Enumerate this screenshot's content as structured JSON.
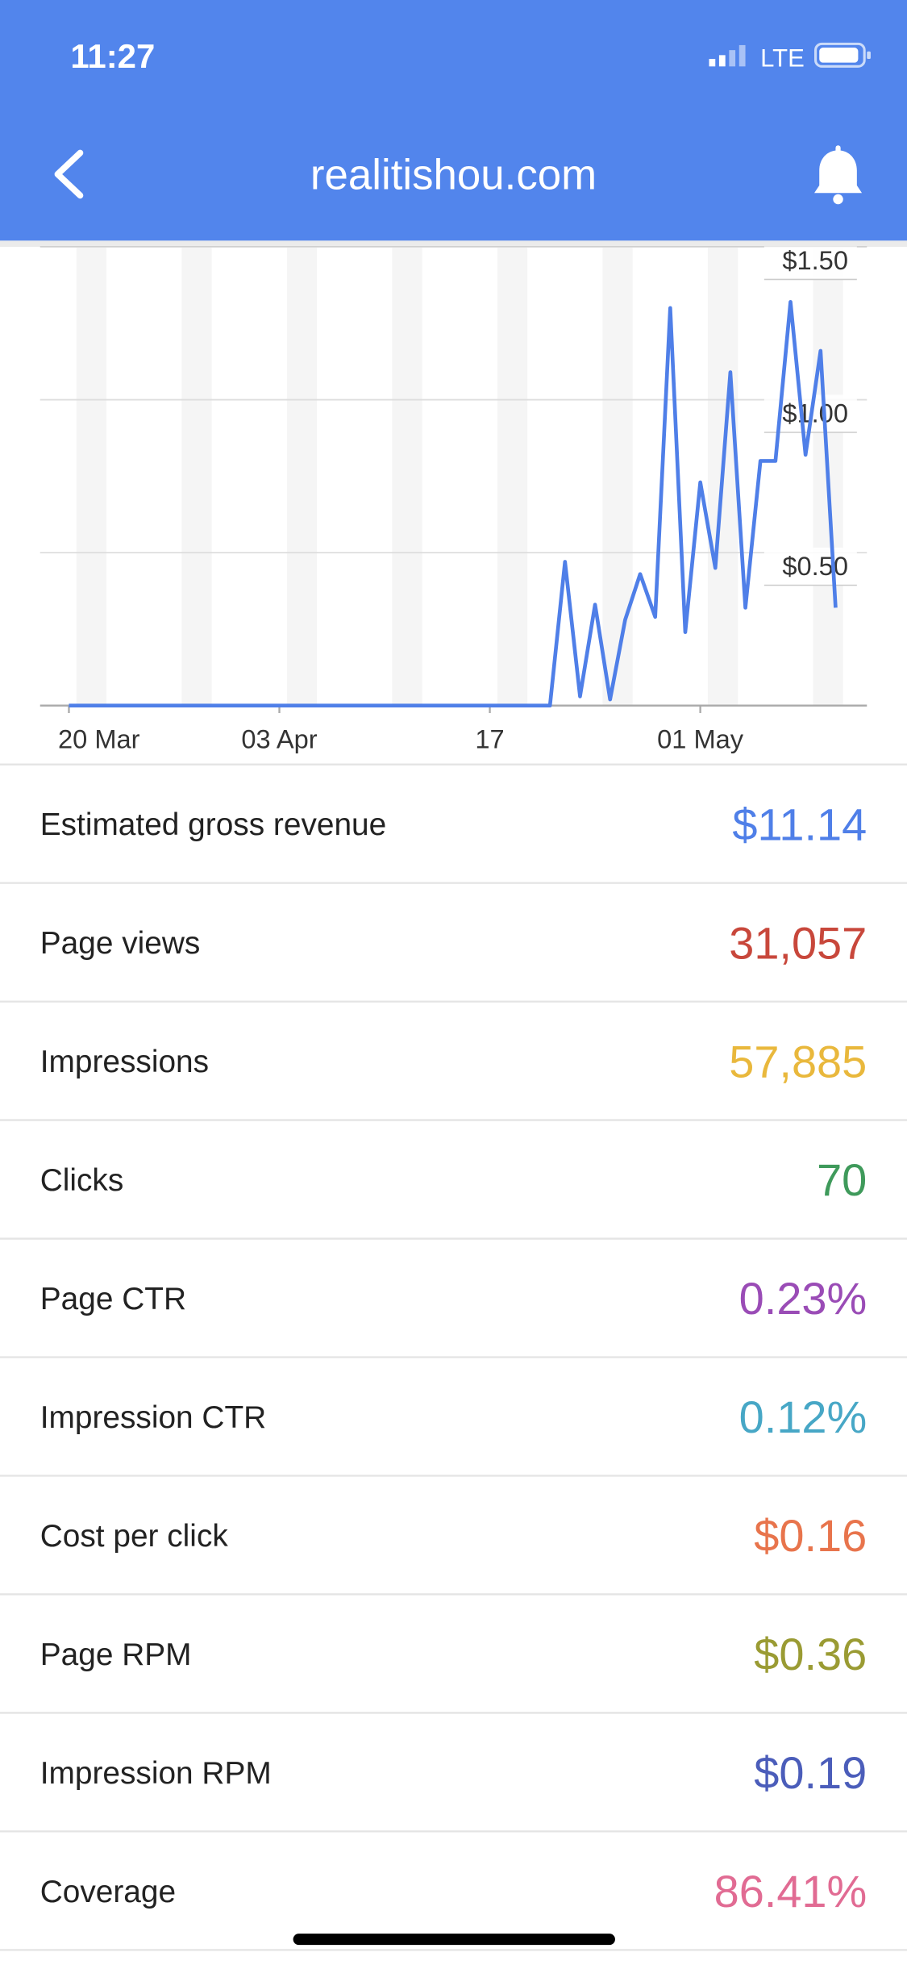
{
  "status_bar": {
    "time": "11:27",
    "network": "LTE"
  },
  "header": {
    "title": "realitishou.com"
  },
  "chart_data": {
    "type": "line",
    "categories": [
      "20 Mar",
      null,
      null,
      null,
      null,
      null,
      null,
      null,
      null,
      null,
      null,
      null,
      null,
      null,
      "03 Apr",
      null,
      null,
      null,
      null,
      null,
      null,
      null,
      null,
      null,
      null,
      null,
      null,
      null,
      "17",
      null,
      null,
      null,
      null,
      null,
      null,
      null,
      null,
      null,
      null,
      null,
      null,
      null,
      "01 May",
      null,
      null,
      null,
      null,
      null,
      null,
      null,
      null,
      null
    ],
    "series": [
      {
        "color": "#4f7fe8",
        "values": [
          0,
          0,
          0,
          0,
          0,
          0,
          0,
          0,
          0,
          0,
          0,
          0,
          0,
          0,
          0,
          0,
          0,
          0,
          0,
          0,
          0,
          0,
          0,
          0,
          0,
          0,
          0,
          0,
          0,
          0,
          0,
          0,
          0,
          0.47,
          0.03,
          0.33,
          0.02,
          0.28,
          0.43,
          0.29,
          1.3,
          0.24,
          0.73,
          0.45,
          1.09,
          0.32,
          0.8,
          0.8,
          1.32,
          0.82,
          1.16,
          0.32
        ]
      }
    ],
    "ylim": [
      0,
      1.5
    ],
    "yticks": [
      {
        "value": 0.5,
        "label": "$0.50"
      },
      {
        "value": 1,
        "label": "$1.00"
      },
      {
        "value": 1.5,
        "label": "$1.50"
      }
    ],
    "grid": true
  },
  "metrics": [
    {
      "label": "Estimated gross revenue",
      "value": "$11.14",
      "color": "#4f7fe8"
    },
    {
      "label": "Page views",
      "value": "31,057",
      "color": "#c8473b"
    },
    {
      "label": "Impressions",
      "value": "57,885",
      "color": "#e9b83c"
    },
    {
      "label": "Clicks",
      "value": "70",
      "color": "#3f9a5b"
    },
    {
      "label": "Page CTR",
      "value": "0.23%",
      "color": "#9a4cb6"
    },
    {
      "label": "Impression CTR",
      "value": "0.12%",
      "color": "#47a7c6"
    },
    {
      "label": "Cost per click",
      "value": "$0.16",
      "color": "#e8744c"
    },
    {
      "label": "Page RPM",
      "value": "$0.36",
      "color": "#9a9b33"
    },
    {
      "label": "Impression RPM",
      "value": "$0.19",
      "color": "#4b5dba"
    },
    {
      "label": "Coverage",
      "value": "86.41%",
      "color": "#e16b93"
    }
  ]
}
